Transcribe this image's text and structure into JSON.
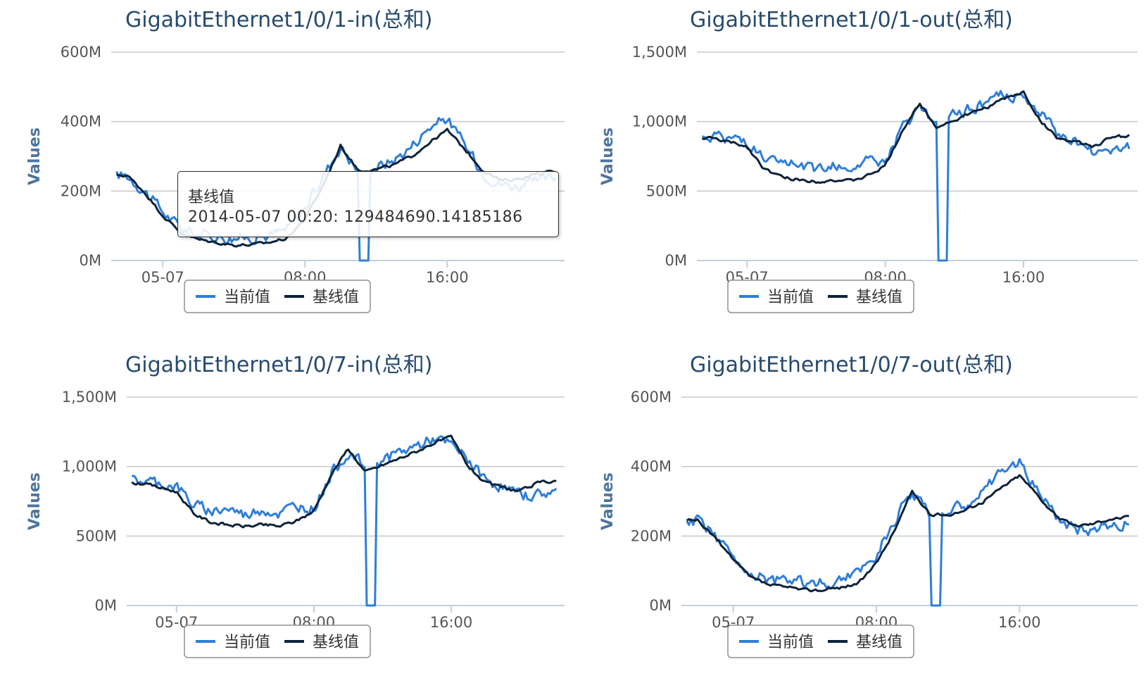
{
  "chart_data": [
    {
      "type": "line",
      "title": "GigabitEthernet1/0/1-in(总和)",
      "ylabel": "Values",
      "ylim": [
        0,
        600
      ],
      "yticks": [
        "0M",
        "200M",
        "400M",
        "600M"
      ],
      "xticks": [
        "05-07",
        "08:00",
        "16:00"
      ],
      "x_hours": [
        -2,
        -1,
        0,
        1,
        2,
        3,
        4,
        5,
        6,
        7,
        8,
        9,
        10,
        11,
        12,
        13,
        14,
        15,
        16,
        17,
        18,
        19,
        20,
        21,
        22
      ],
      "legend_position": "bottom",
      "series": [
        {
          "name": "当前值",
          "color": "#2f7ed8",
          "values": [
            245,
            200,
            140,
            95,
            75,
            70,
            65,
            68,
            72,
            90,
            150,
            240,
            330,
            255,
            270,
            290,
            330,
            385,
            410,
            330,
            255,
            220,
            215,
            225,
            240
          ],
          "dip_hours": [
            11.0,
            11.6
          ]
        },
        {
          "name": "基线值",
          "color": "#0d233a",
          "values": [
            245,
            195,
            130,
            80,
            60,
            52,
            45,
            45,
            52,
            65,
            120,
            215,
            330,
            260,
            262,
            275,
            300,
            340,
            375,
            320,
            260,
            230,
            235,
            250,
            255
          ]
        }
      ],
      "tooltip": {
        "series": "基线值",
        "text": "2014-05-07 00:20: 129484690.14185186"
      }
    },
    {
      "type": "line",
      "title": "GigabitEthernet1/0/1-out(总和)",
      "ylabel": "Values",
      "ylim": [
        0,
        1500
      ],
      "yticks": [
        "0M",
        "500M",
        "1,000M",
        "1,500M"
      ],
      "xticks": [
        "05-07",
        "08:00",
        "16:00"
      ],
      "x_hours": [
        -2,
        -1,
        0,
        1,
        2,
        3,
        4,
        5,
        6,
        7,
        8,
        9,
        10,
        11,
        12,
        13,
        14,
        15,
        16,
        17,
        18,
        19,
        20,
        21,
        22
      ],
      "legend_position": "bottom",
      "series": [
        {
          "name": "当前值",
          "color": "#2f7ed8",
          "values": [
            900,
            880,
            860,
            720,
            680,
            700,
            650,
            700,
            660,
            720,
            700,
            950,
            1100,
            1000,
            1050,
            1100,
            1150,
            1200,
            1150,
            1050,
            900,
            860,
            790,
            800,
            820
          ],
          "dip_hours": [
            11.0,
            11.6
          ]
        },
        {
          "name": "基线值",
          "color": "#0d233a",
          "values": [
            880,
            850,
            820,
            660,
            600,
            580,
            570,
            580,
            570,
            610,
            680,
            940,
            1130,
            960,
            1010,
            1060,
            1110,
            1170,
            1210,
            1000,
            880,
            850,
            820,
            880,
            900
          ]
        }
      ]
    },
    {
      "type": "line",
      "title": "GigabitEthernet1/0/7-in(总和)",
      "ylabel": "Values",
      "ylim": [
        0,
        1500
      ],
      "yticks": [
        "0M",
        "500M",
        "1,000M",
        "1,500M"
      ],
      "xticks": [
        "05-07",
        "08:00",
        "16:00"
      ],
      "x_hours": [
        -2,
        -1,
        0,
        1,
        2,
        3,
        4,
        5,
        6,
        7,
        8,
        9,
        10,
        11,
        12,
        13,
        14,
        15,
        16,
        17,
        18,
        19,
        20,
        21,
        22
      ],
      "legend_position": "bottom",
      "series": [
        {
          "name": "当前值",
          "color": "#2f7ed8",
          "values": [
            900,
            880,
            860,
            720,
            680,
            700,
            650,
            700,
            660,
            720,
            700,
            950,
            1100,
            1000,
            1050,
            1100,
            1150,
            1200,
            1150,
            1050,
            900,
            860,
            790,
            800,
            820
          ],
          "dip_hours": [
            11.0,
            11.6
          ]
        },
        {
          "name": "基线值",
          "color": "#0d233a",
          "values": [
            880,
            850,
            820,
            660,
            600,
            580,
            570,
            580,
            570,
            610,
            680,
            940,
            1130,
            960,
            1010,
            1060,
            1110,
            1170,
            1210,
            1000,
            880,
            850,
            820,
            880,
            900
          ]
        }
      ]
    },
    {
      "type": "line",
      "title": "GigabitEthernet1/0/7-out(总和)",
      "ylabel": "Values",
      "ylim": [
        0,
        600
      ],
      "yticks": [
        "0M",
        "200M",
        "400M",
        "600M"
      ],
      "xticks": [
        "05-07",
        "08:00",
        "16:00"
      ],
      "x_hours": [
        -2,
        -1,
        0,
        1,
        2,
        3,
        4,
        5,
        6,
        7,
        8,
        9,
        10,
        11,
        12,
        13,
        14,
        15,
        16,
        17,
        18,
        19,
        20,
        21,
        22
      ],
      "legend_position": "bottom",
      "series": [
        {
          "name": "当前值",
          "color": "#2f7ed8",
          "values": [
            245,
            200,
            140,
            95,
            75,
            70,
            65,
            68,
            72,
            90,
            150,
            240,
            330,
            255,
            270,
            290,
            330,
            385,
            410,
            330,
            255,
            220,
            215,
            225,
            240
          ],
          "dip_hours": [
            11.0,
            11.6
          ]
        },
        {
          "name": "基线值",
          "color": "#0d233a",
          "values": [
            245,
            195,
            130,
            80,
            60,
            52,
            45,
            45,
            52,
            65,
            120,
            215,
            330,
            260,
            262,
            275,
            300,
            340,
            375,
            320,
            260,
            230,
            235,
            250,
            255
          ]
        }
      ]
    }
  ]
}
